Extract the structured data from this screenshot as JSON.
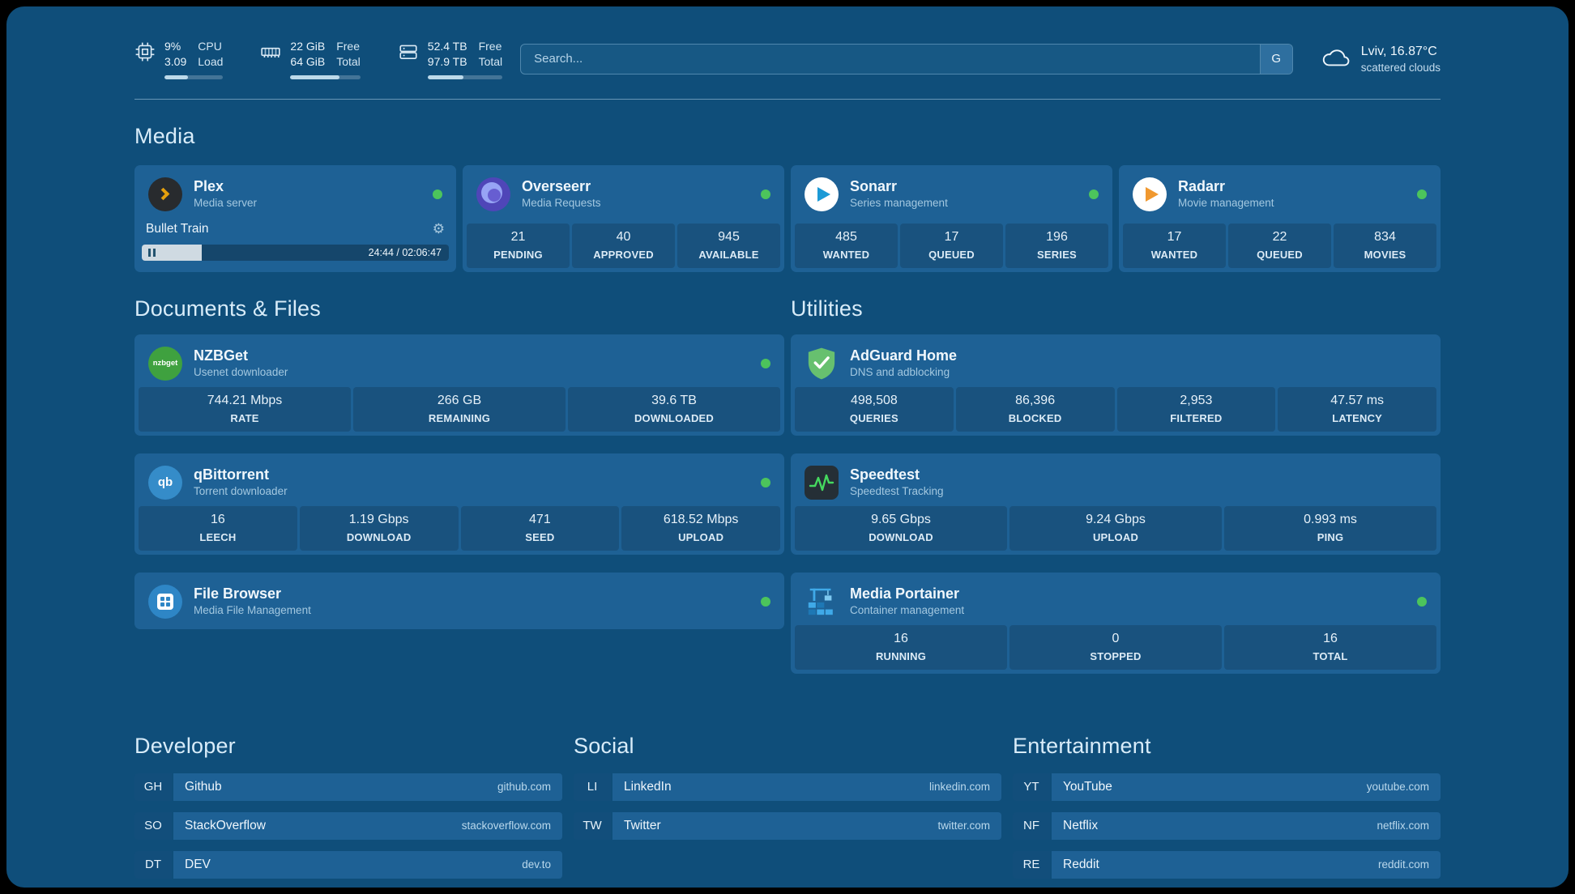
{
  "topbar": {
    "metrics": [
      {
        "icon": "cpu-icon",
        "value_top": "9%",
        "value_bottom": "3.09",
        "label_top": "CPU",
        "label_bottom": "Load",
        "progress": 40
      },
      {
        "icon": "ram-icon",
        "value_top": "22 GiB",
        "value_bottom": "64 GiB",
        "label_top": "Free",
        "label_bottom": "Total",
        "progress": 70
      },
      {
        "icon": "disk-icon",
        "value_top": "52.4 TB",
        "value_bottom": "97.9 TB",
        "label_top": "Free",
        "label_bottom": "Total",
        "progress": 48
      }
    ],
    "search": {
      "placeholder": "Search...",
      "engine_button": "G"
    },
    "weather": {
      "location": "Lviv, 16.87°C",
      "condition": "scattered clouds"
    }
  },
  "sections": {
    "media": {
      "title": "Media",
      "plex": {
        "name": "Plex",
        "subtitle": "Media server",
        "status": "online",
        "now_playing": {
          "title": "Bullet Train",
          "time_display": "24:44 / 02:06:47",
          "progress": 19.5
        }
      },
      "overseerr": {
        "name": "Overseerr",
        "subtitle": "Media Requests",
        "status": "online",
        "stats": [
          {
            "value": "21",
            "label": "PENDING"
          },
          {
            "value": "40",
            "label": "APPROVED"
          },
          {
            "value": "945",
            "label": "AVAILABLE"
          }
        ]
      },
      "sonarr": {
        "name": "Sonarr",
        "subtitle": "Series management",
        "status": "online",
        "stats": [
          {
            "value": "485",
            "label": "WANTED"
          },
          {
            "value": "17",
            "label": "QUEUED"
          },
          {
            "value": "196",
            "label": "SERIES"
          }
        ]
      },
      "radarr": {
        "name": "Radarr",
        "subtitle": "Movie management",
        "status": "online",
        "stats": [
          {
            "value": "17",
            "label": "WANTED"
          },
          {
            "value": "22",
            "label": "QUEUED"
          },
          {
            "value": "834",
            "label": "MOVIES"
          }
        ]
      }
    },
    "documents": {
      "title": "Documents & Files",
      "nzbget": {
        "name": "NZBGet",
        "subtitle": "Usenet downloader",
        "status": "online",
        "icon_text": "nzbget",
        "stats": [
          {
            "value": "744.21 Mbps",
            "label": "RATE"
          },
          {
            "value": "266 GB",
            "label": "REMAINING"
          },
          {
            "value": "39.6 TB",
            "label": "DOWNLOADED"
          }
        ]
      },
      "qbittorrent": {
        "name": "qBittorrent",
        "subtitle": "Torrent downloader",
        "status": "online",
        "icon_text": "qb",
        "stats": [
          {
            "value": "16",
            "label": "LEECH"
          },
          {
            "value": "1.19 Gbps",
            "label": "DOWNLOAD"
          },
          {
            "value": "471",
            "label": "SEED"
          },
          {
            "value": "618.52 Mbps",
            "label": "UPLOAD"
          }
        ]
      },
      "filebrowser": {
        "name": "File Browser",
        "subtitle": "Media File Management",
        "status": "online"
      }
    },
    "utilities": {
      "title": "Utilities",
      "adguard": {
        "name": "AdGuard Home",
        "subtitle": "DNS and adblocking",
        "stats": [
          {
            "value": "498,508",
            "label": "QUERIES"
          },
          {
            "value": "86,396",
            "label": "BLOCKED"
          },
          {
            "value": "2,953",
            "label": "FILTERED"
          },
          {
            "value": "47.57 ms",
            "label": "LATENCY"
          }
        ]
      },
      "speedtest": {
        "name": "Speedtest",
        "subtitle": "Speedtest Tracking",
        "stats": [
          {
            "value": "9.65 Gbps",
            "label": "DOWNLOAD"
          },
          {
            "value": "9.24 Gbps",
            "label": "UPLOAD"
          },
          {
            "value": "0.993 ms",
            "label": "PING"
          }
        ]
      },
      "portainer": {
        "name": "Media Portainer",
        "subtitle": "Container management",
        "status": "online",
        "stats": [
          {
            "value": "16",
            "label": "RUNNING"
          },
          {
            "value": "0",
            "label": "STOPPED"
          },
          {
            "value": "16",
            "label": "TOTAL"
          }
        ]
      }
    }
  },
  "bookmarks": {
    "developer": {
      "title": "Developer",
      "links": [
        {
          "abbr": "GH",
          "name": "Github",
          "url": "github.com"
        },
        {
          "abbr": "SO",
          "name": "StackOverflow",
          "url": "stackoverflow.com"
        },
        {
          "abbr": "DT",
          "name": "DEV",
          "url": "dev.to"
        }
      ]
    },
    "social": {
      "title": "Social",
      "links": [
        {
          "abbr": "LI",
          "name": "LinkedIn",
          "url": "linkedin.com"
        },
        {
          "abbr": "TW",
          "name": "Twitter",
          "url": "twitter.com"
        }
      ]
    },
    "entertainment": {
      "title": "Entertainment",
      "links": [
        {
          "abbr": "YT",
          "name": "YouTube",
          "url": "youtube.com"
        },
        {
          "abbr": "NF",
          "name": "Netflix",
          "url": "netflix.com"
        },
        {
          "abbr": "RE",
          "name": "Reddit",
          "url": "reddit.com"
        }
      ]
    }
  },
  "colors": {
    "background": "#0f4e7a",
    "card": "#1e6195",
    "status_online": "#4cc45c",
    "plex_accent": "#e5a00d"
  }
}
